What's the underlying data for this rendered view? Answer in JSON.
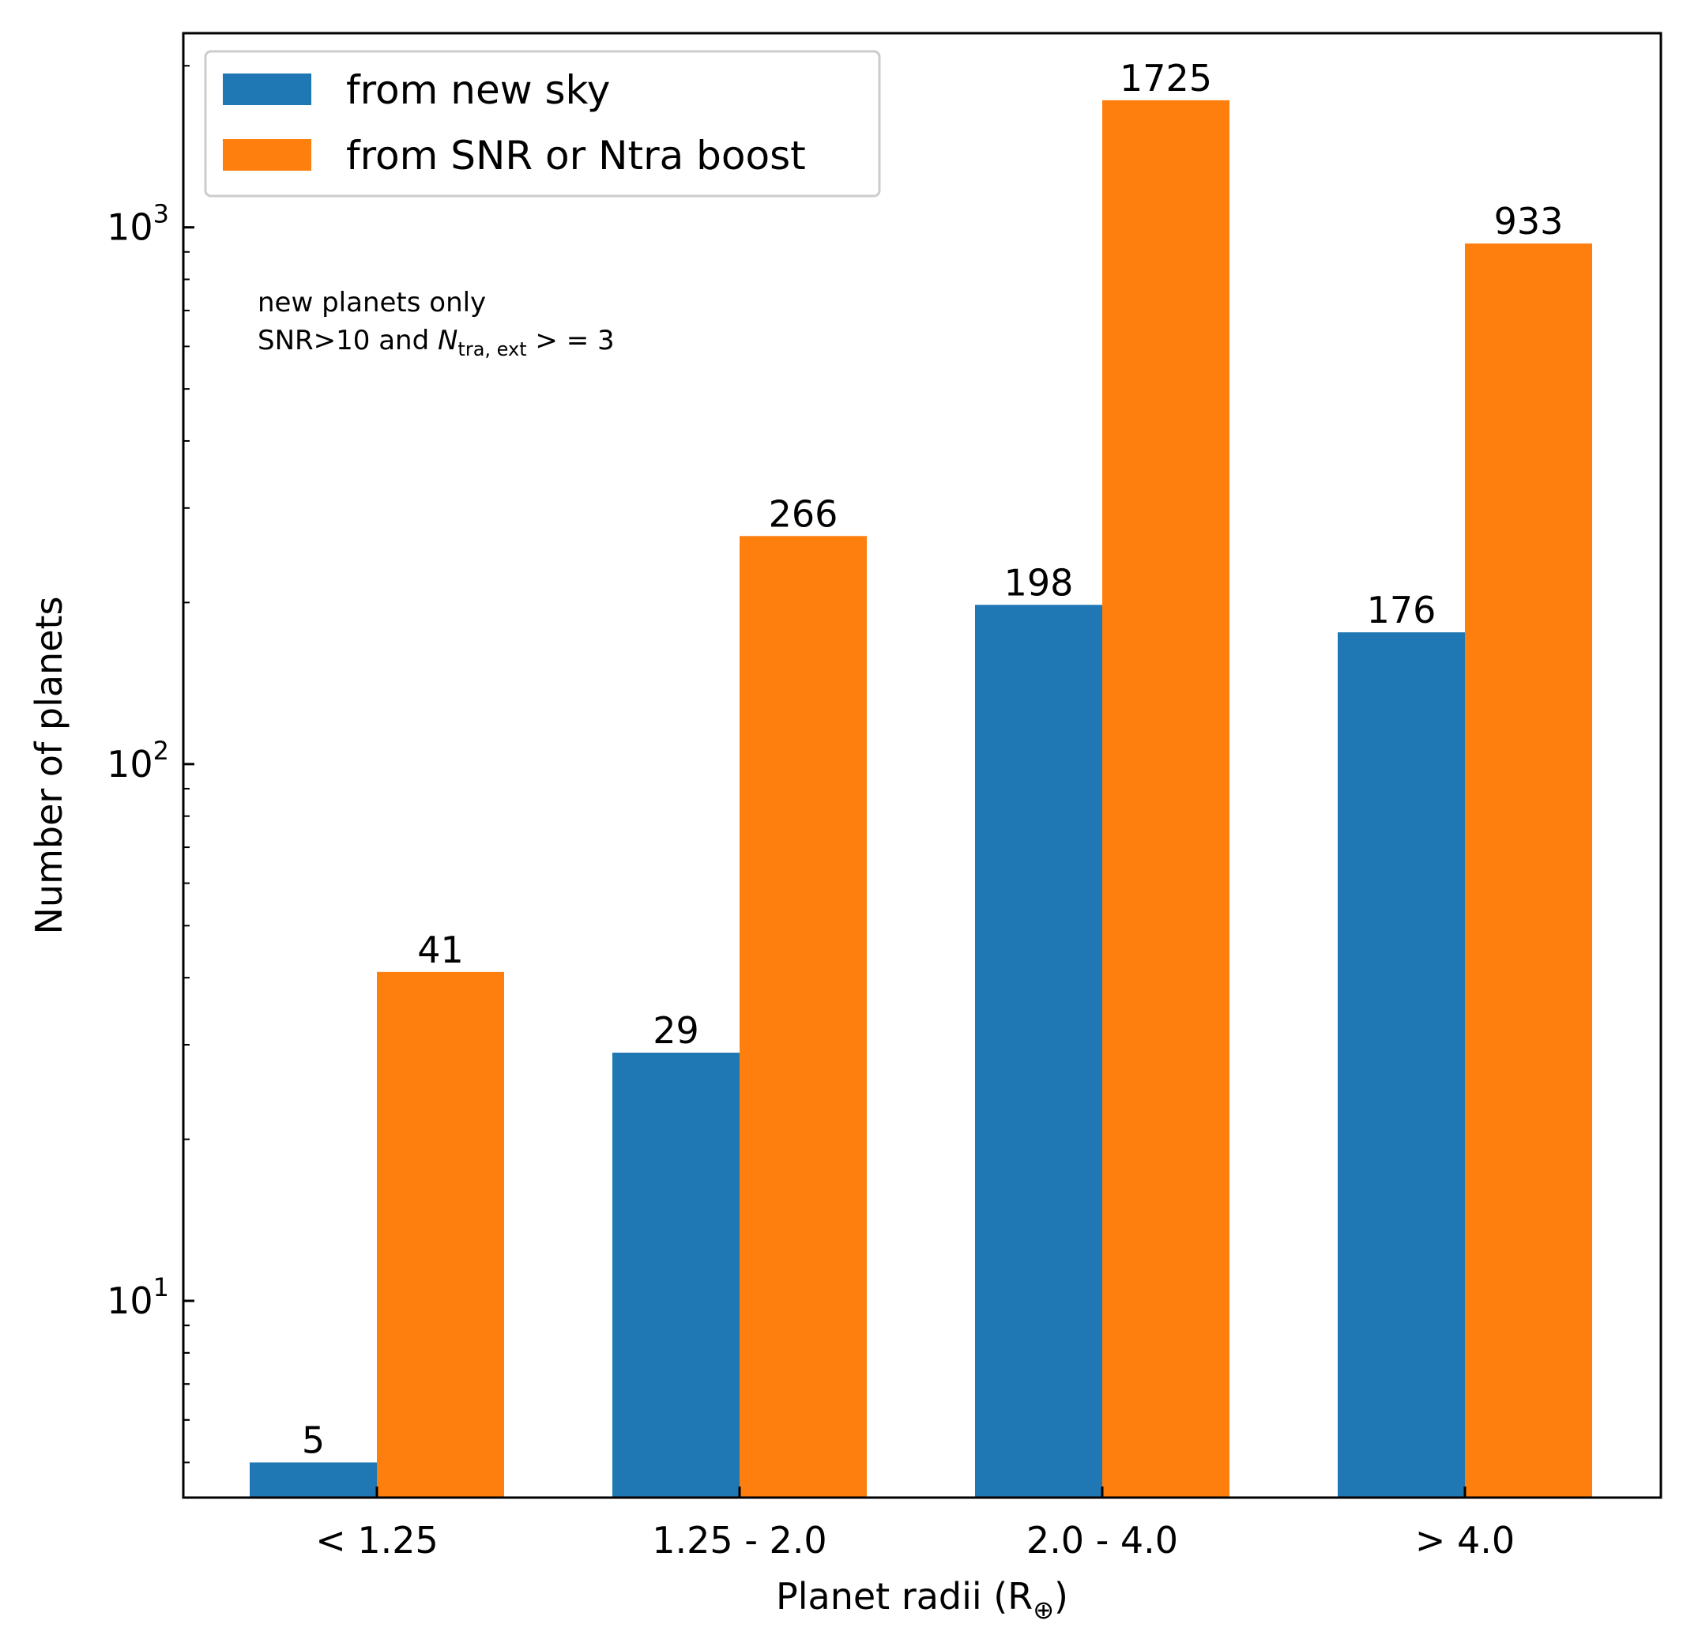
{
  "chart_data": {
    "type": "bar",
    "scale": "log",
    "categories": [
      "< 1.25",
      "1.25 - 2.0",
      "2.0 - 4.0",
      "> 4.0"
    ],
    "series": [
      {
        "name": "from new sky",
        "color": "#1f77b4",
        "values": [
          5,
          29,
          198,
          176
        ]
      },
      {
        "name": "from SNR or Ntra boost",
        "color": "#ff7f0e",
        "values": [
          41,
          266,
          1725,
          933
        ]
      }
    ],
    "xlabel": "Planet radii (R",
    "xlabel_symbol": "⊕",
    "xlabel_close": ")",
    "ylabel": "Number of planets",
    "ylim": [
      4.3,
      2300
    ],
    "yticks_major": [
      {
        "value": 10,
        "base": "10",
        "exp": "1"
      },
      {
        "value": 100,
        "base": "10",
        "exp": "2"
      },
      {
        "value": 1000,
        "base": "10",
        "exp": "3"
      }
    ],
    "legend_position": "upper-left",
    "annotation": {
      "line1": "new planets only",
      "line2_prefix": "SNR>10 and ",
      "line2_var": "N",
      "line2_sub": "tra, ext",
      "line2_suffix": " > = 3"
    },
    "grid": false
  }
}
